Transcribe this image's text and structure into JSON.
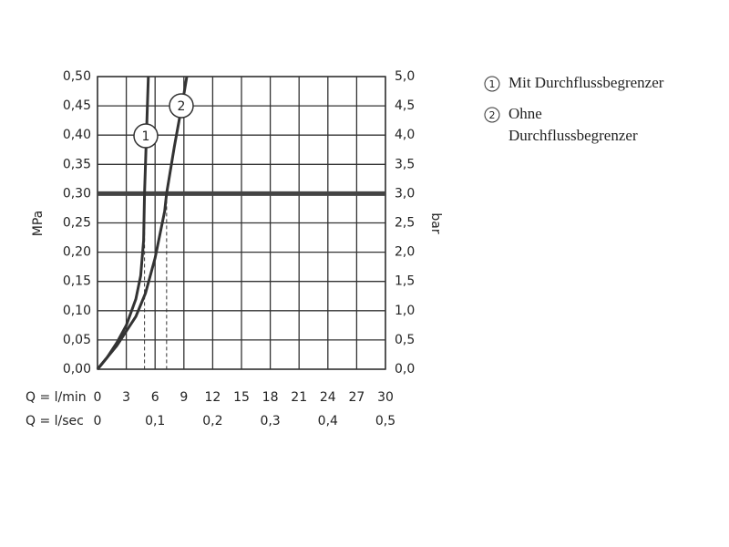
{
  "chart_data": {
    "type": "line",
    "x_label": "Q = l/min",
    "x2_label": "Q = l/sec",
    "y_label": "MPa",
    "y2_label": "bar",
    "xlim": [
      0,
      30
    ],
    "xticks": [
      0,
      3,
      6,
      9,
      12,
      15,
      18,
      21,
      24,
      27,
      30
    ],
    "x2lim": [
      0,
      0.5
    ],
    "x2ticks": [
      {
        "value": 0,
        "label": "0"
      },
      {
        "value": 0.1,
        "label": "0,1"
      },
      {
        "value": 0.2,
        "label": "0,2"
      },
      {
        "value": 0.3,
        "label": "0,3"
      },
      {
        "value": 0.4,
        "label": "0,4"
      },
      {
        "value": 0.5,
        "label": "0,5"
      }
    ],
    "ylim": [
      0,
      0.5
    ],
    "yticks": [
      {
        "value": 0,
        "label": "0,00"
      },
      {
        "value": 0.05,
        "label": "0,05"
      },
      {
        "value": 0.1,
        "label": "0,10"
      },
      {
        "value": 0.15,
        "label": "0,15"
      },
      {
        "value": 0.2,
        "label": "0,20"
      },
      {
        "value": 0.25,
        "label": "0,25"
      },
      {
        "value": 0.3,
        "label": "0,30"
      },
      {
        "value": 0.35,
        "label": "0,35"
      },
      {
        "value": 0.4,
        "label": "0,40"
      },
      {
        "value": 0.45,
        "label": "0,45"
      },
      {
        "value": 0.5,
        "label": "0,50"
      }
    ],
    "y2lim": [
      0,
      5
    ],
    "y2ticks": [
      {
        "value": 0,
        "label": "0,0"
      },
      {
        "value": 0.5,
        "label": "0,5"
      },
      {
        "value": 1,
        "label": "1,0"
      },
      {
        "value": 1.5,
        "label": "1,5"
      },
      {
        "value": 2,
        "label": "2,0"
      },
      {
        "value": 2.5,
        "label": "2,5"
      },
      {
        "value": 3,
        "label": "3,0"
      },
      {
        "value": 3.5,
        "label": "3,5"
      },
      {
        "value": 4,
        "label": "4,0"
      },
      {
        "value": 4.5,
        "label": "4,5"
      },
      {
        "value": 5,
        "label": "5,0"
      }
    ],
    "grid": true,
    "reference_line": 0.3,
    "drop_lines": [
      {
        "x": 4.9,
        "y": 0.3
      },
      {
        "x": 7.2,
        "y": 0.3
      }
    ],
    "series": [
      {
        "name": "Mit Durchflussbegrenzer",
        "marker": "1",
        "color": "#333333",
        "x": [
          0,
          1,
          2,
          3,
          4,
          4.5,
          4.8,
          4.9,
          5.1,
          5.3
        ],
        "values": [
          0,
          0.02,
          0.045,
          0.075,
          0.12,
          0.16,
          0.22,
          0.3,
          0.4,
          0.5
        ]
      },
      {
        "name": "Ohne Durchflussbegrenzer",
        "marker": "2",
        "color": "#333333",
        "x": [
          0,
          2,
          4,
          5,
          6,
          7,
          7.2,
          8,
          9,
          9.3
        ],
        "values": [
          0,
          0.04,
          0.09,
          0.13,
          0.19,
          0.27,
          0.3,
          0.38,
          0.47,
          0.5
        ]
      }
    ]
  }
}
